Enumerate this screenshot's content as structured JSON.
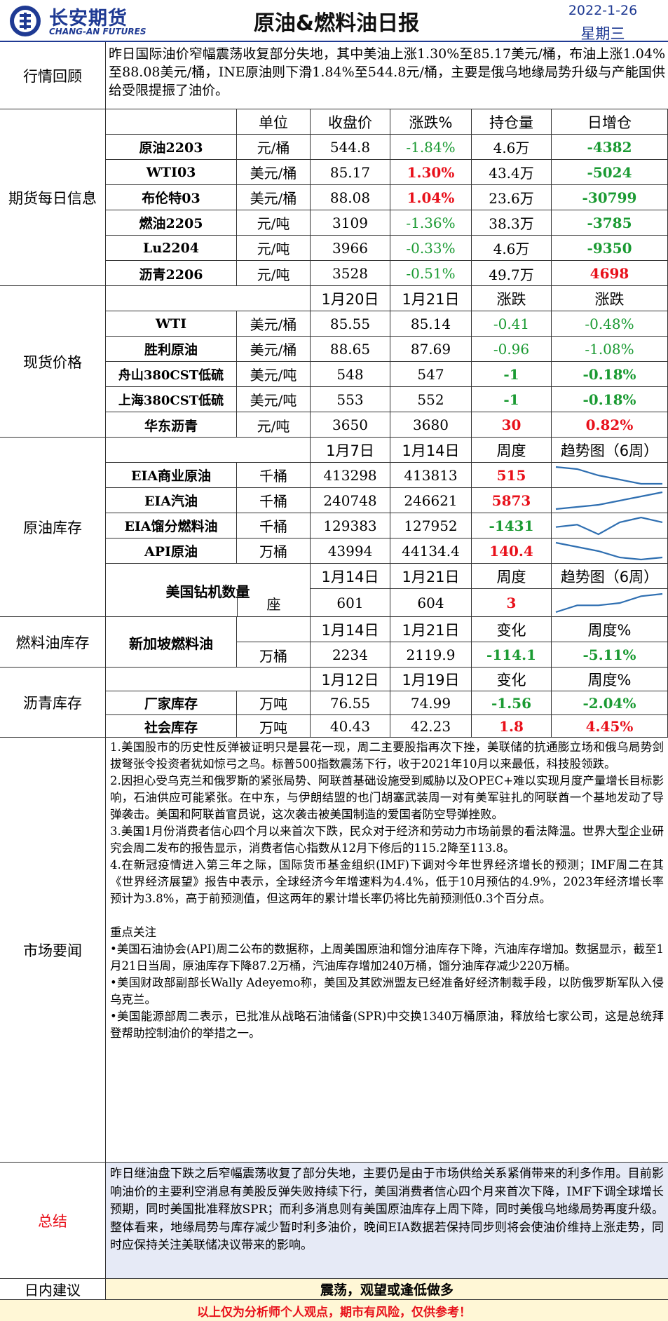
{
  "header": {
    "logo_cn": "长安期货",
    "logo_en": "CHANG-AN FUTURES",
    "title": "原油&燃料油日报",
    "date": "2022-1-26",
    "weekday": "星期三"
  },
  "review": {
    "label": "行情回顾",
    "text": "昨日国际油价窄幅震荡收复部分失地，其中美油上涨1.30%至85.17美元/桶，布油上涨1.04%至88.08美元/桶，INE原油则下滑1.84%至544.8元/桶，主要是俄乌地缘局势升级与产能国供给受限提振了油价。"
  },
  "futures": {
    "label": "期货每日信息",
    "headers": [
      "单位",
      "收盘价",
      "涨跌%",
      "持仓量",
      "日增仓"
    ],
    "rows": [
      {
        "name": "原油2203",
        "unit": "元/桶",
        "close": "544.8",
        "chg": "-1.84%",
        "oi": "4.6万",
        "doi": "-4382"
      },
      {
        "name": "WTI03",
        "unit": "美元/桶",
        "close": "85.17",
        "chg": "1.30%",
        "oi": "43.4万",
        "doi": "-5024"
      },
      {
        "name": "布伦特03",
        "unit": "美元/桶",
        "close": "88.08",
        "chg": "1.04%",
        "oi": "23.6万",
        "doi": "-30799"
      },
      {
        "name": "燃油2205",
        "unit": "元/吨",
        "close": "3109",
        "chg": "-1.36%",
        "oi": "38.3万",
        "doi": "-3785"
      },
      {
        "name": "Lu2204",
        "unit": "元/吨",
        "close": "3966",
        "chg": "-0.33%",
        "oi": "4.6万",
        "doi": "-9350"
      },
      {
        "name": "沥青2206",
        "unit": "元/吨",
        "close": "3528",
        "chg": "-0.51%",
        "oi": "49.7万",
        "doi": "4698"
      }
    ]
  },
  "spot": {
    "label": "现货价格",
    "headers": [
      "1月20日",
      "1月21日",
      "涨跌",
      "涨跌"
    ],
    "rows": [
      {
        "name": "WTI",
        "unit": "美元/桶",
        "d1": "85.55",
        "d2": "85.14",
        "chg": "-0.41",
        "pct": "-0.48%"
      },
      {
        "name": "胜利原油",
        "unit": "美元/桶",
        "d1": "88.65",
        "d2": "87.69",
        "chg": "-0.96",
        "pct": "-1.08%"
      },
      {
        "name": "舟山380CST低硫",
        "unit": "美元/吨",
        "d1": "548",
        "d2": "547",
        "chg": "-1",
        "pct": "-0.18%"
      },
      {
        "name": "上海380CST低硫",
        "unit": "美元/吨",
        "d1": "553",
        "d2": "552",
        "chg": "-1",
        "pct": "-0.18%"
      },
      {
        "name": "华东沥青",
        "unit": "元/吨",
        "d1": "3650",
        "d2": "3680",
        "chg": "30",
        "pct": "0.82%"
      }
    ]
  },
  "inventory": {
    "label": "原油库存",
    "headers": [
      "1月7日",
      "1月14日",
      "周度",
      "趋势图（6周）"
    ],
    "rows": [
      {
        "name": "EIA商业原油",
        "unit": "千桶",
        "d1": "413298",
        "d2": "413813",
        "chg": "515",
        "trend": [
          10,
          9,
          6,
          4,
          2,
          2
        ]
      },
      {
        "name": "EIA汽油",
        "unit": "千桶",
        "d1": "240748",
        "d2": "246621",
        "chg": "5873",
        "trend": [
          2,
          3,
          4,
          6,
          8,
          10
        ]
      },
      {
        "name": "EIA馏分燃料油",
        "unit": "千桶",
        "d1": "129383",
        "d2": "127952",
        "chg": "-1431",
        "trend": [
          6,
          7,
          3,
          8,
          10,
          8
        ]
      },
      {
        "name": "API原油",
        "unit": "万桶",
        "d1": "43994",
        "d2": "44134.4",
        "chg": "140.4",
        "trend": [
          10,
          8,
          6,
          3,
          2,
          3
        ]
      }
    ],
    "rig": {
      "name": "美国钻机数量",
      "headers": [
        "1月14日",
        "1月21日",
        "周度",
        "趋势图（6周）"
      ],
      "unit": "座",
      "d1": "601",
      "d2": "604",
      "chg": "3",
      "trend": [
        2,
        5,
        5,
        6,
        9,
        10
      ]
    }
  },
  "fuel_inv": {
    "label": "燃料油库存",
    "name": "新加坡燃料油",
    "headers": [
      "1月14日",
      "1月21日",
      "变化",
      "周度%"
    ],
    "unit": "万桶",
    "d1": "2234",
    "d2": "2119.9",
    "chg": "-114.1",
    "pct": "-5.11%"
  },
  "asphalt_inv": {
    "label": "沥青库存",
    "headers": [
      "1月12日",
      "1月19日",
      "变化",
      "周度%"
    ],
    "rows": [
      {
        "name": "厂家库存",
        "unit": "万吨",
        "d1": "76.55",
        "d2": "74.99",
        "chg": "-1.56",
        "pct": "-2.04%"
      },
      {
        "name": "社会库存",
        "unit": "万吨",
        "d1": "40.43",
        "d2": "42.23",
        "chg": "1.8",
        "pct": "4.45%"
      }
    ]
  },
  "news": {
    "label": "市场要闻",
    "paragraphs": [
      "1.美国股市的历史性反弹被证明只是昙花一现，周二主要股指再次下挫，美联储的抗通膨立场和俄乌局势剑拔弩张令投资者犹如惊弓之鸟。标普500指数震荡下行，收于2021年10月以来最低，科技股领跌。",
      "2.因担心受乌克兰和俄罗斯的紧张局势、阿联酋基础设施受到威胁以及OPEC+难以实现月度产量增长目标影响，石油供应可能紧张。在中东，与伊朗结盟的也门胡塞武装周一对有美军驻扎的阿联酋一个基地发动了导弹袭击。美国和阿联酋官员说，这次袭击被美国制造的爱国者防空导弹挫败。",
      "3.美国1月份消费者信心四个月以来首次下跌，民众对于经济和劳动力市场前景的看法降温。世界大型企业研究会周二发布的报告显示，消费者信心指数从12月下修后的115.2降至113.8。",
      "4.在新冠疫情进入第三年之际，国际货币基金组织(IMF)下调对今年世界经济增长的预测；IMF周二在其《世界经济展望》报告中表示，全球经济今年增速料为4.4%，低于10月预估的4.9%，2023年经济增长率预计为3.8%，高于前预测值，但这两年的累计增长率仍将比先前预测低0.3个百分点。"
    ],
    "focus_title": "重点关注",
    "focus": [
      "•美国石油协会(API)周二公布的数据称，上周美国原油和馏分油库存下降，汽油库存增加。数据显示，截至1月21日当周，原油库存下降87.2万桶，汽油库存增加240万桶，馏分油库存减少220万桶。",
      "•美国财政部副部长Wally Adeyemo称，美国及其欧洲盟友已经准备好经济制裁手段，以防俄罗斯军队入侵乌克兰。",
      "•美国能源部周二表示，已批准从战略石油储备(SPR)中交换1340万桶原油，释放给七家公司，这是总统拜登帮助控制油价的举措之一。"
    ]
  },
  "summary": {
    "label": "总结",
    "text": "昨日继油盘下跌之后窄幅震荡收复了部分失地，主要仍是由于市场供给关系紧俏带来的利多作用。目前影响油价的主要利空消息有美股反弹失败持续下行，美国消费者信心四个月来首次下降，IMF下调全球增长预期，同时美国批准释放SPR；而利多消息则有美国原油库存上周下降，同时美俄乌地缘局势再度升级。整体看来，地缘局势与库存减少暂时利多油价，晚间EIA数据若保持同步则将会使油价维持上涨走势，同时应保持关注美联储决议带来的影响。"
  },
  "advice": {
    "label": "日内建议",
    "text": "震荡，观望或逢低做多"
  },
  "disclaimer": "以上仅为分析师个人观点，期市有风险，仅供参考！",
  "colors": {
    "brand": "#1f3a93",
    "up": "#e8101a",
    "down": "#1a9a32",
    "advice_bg": "#fff7d6",
    "summary_bg": "#e6eaf6",
    "trend_line": "#2f6fb1"
  }
}
